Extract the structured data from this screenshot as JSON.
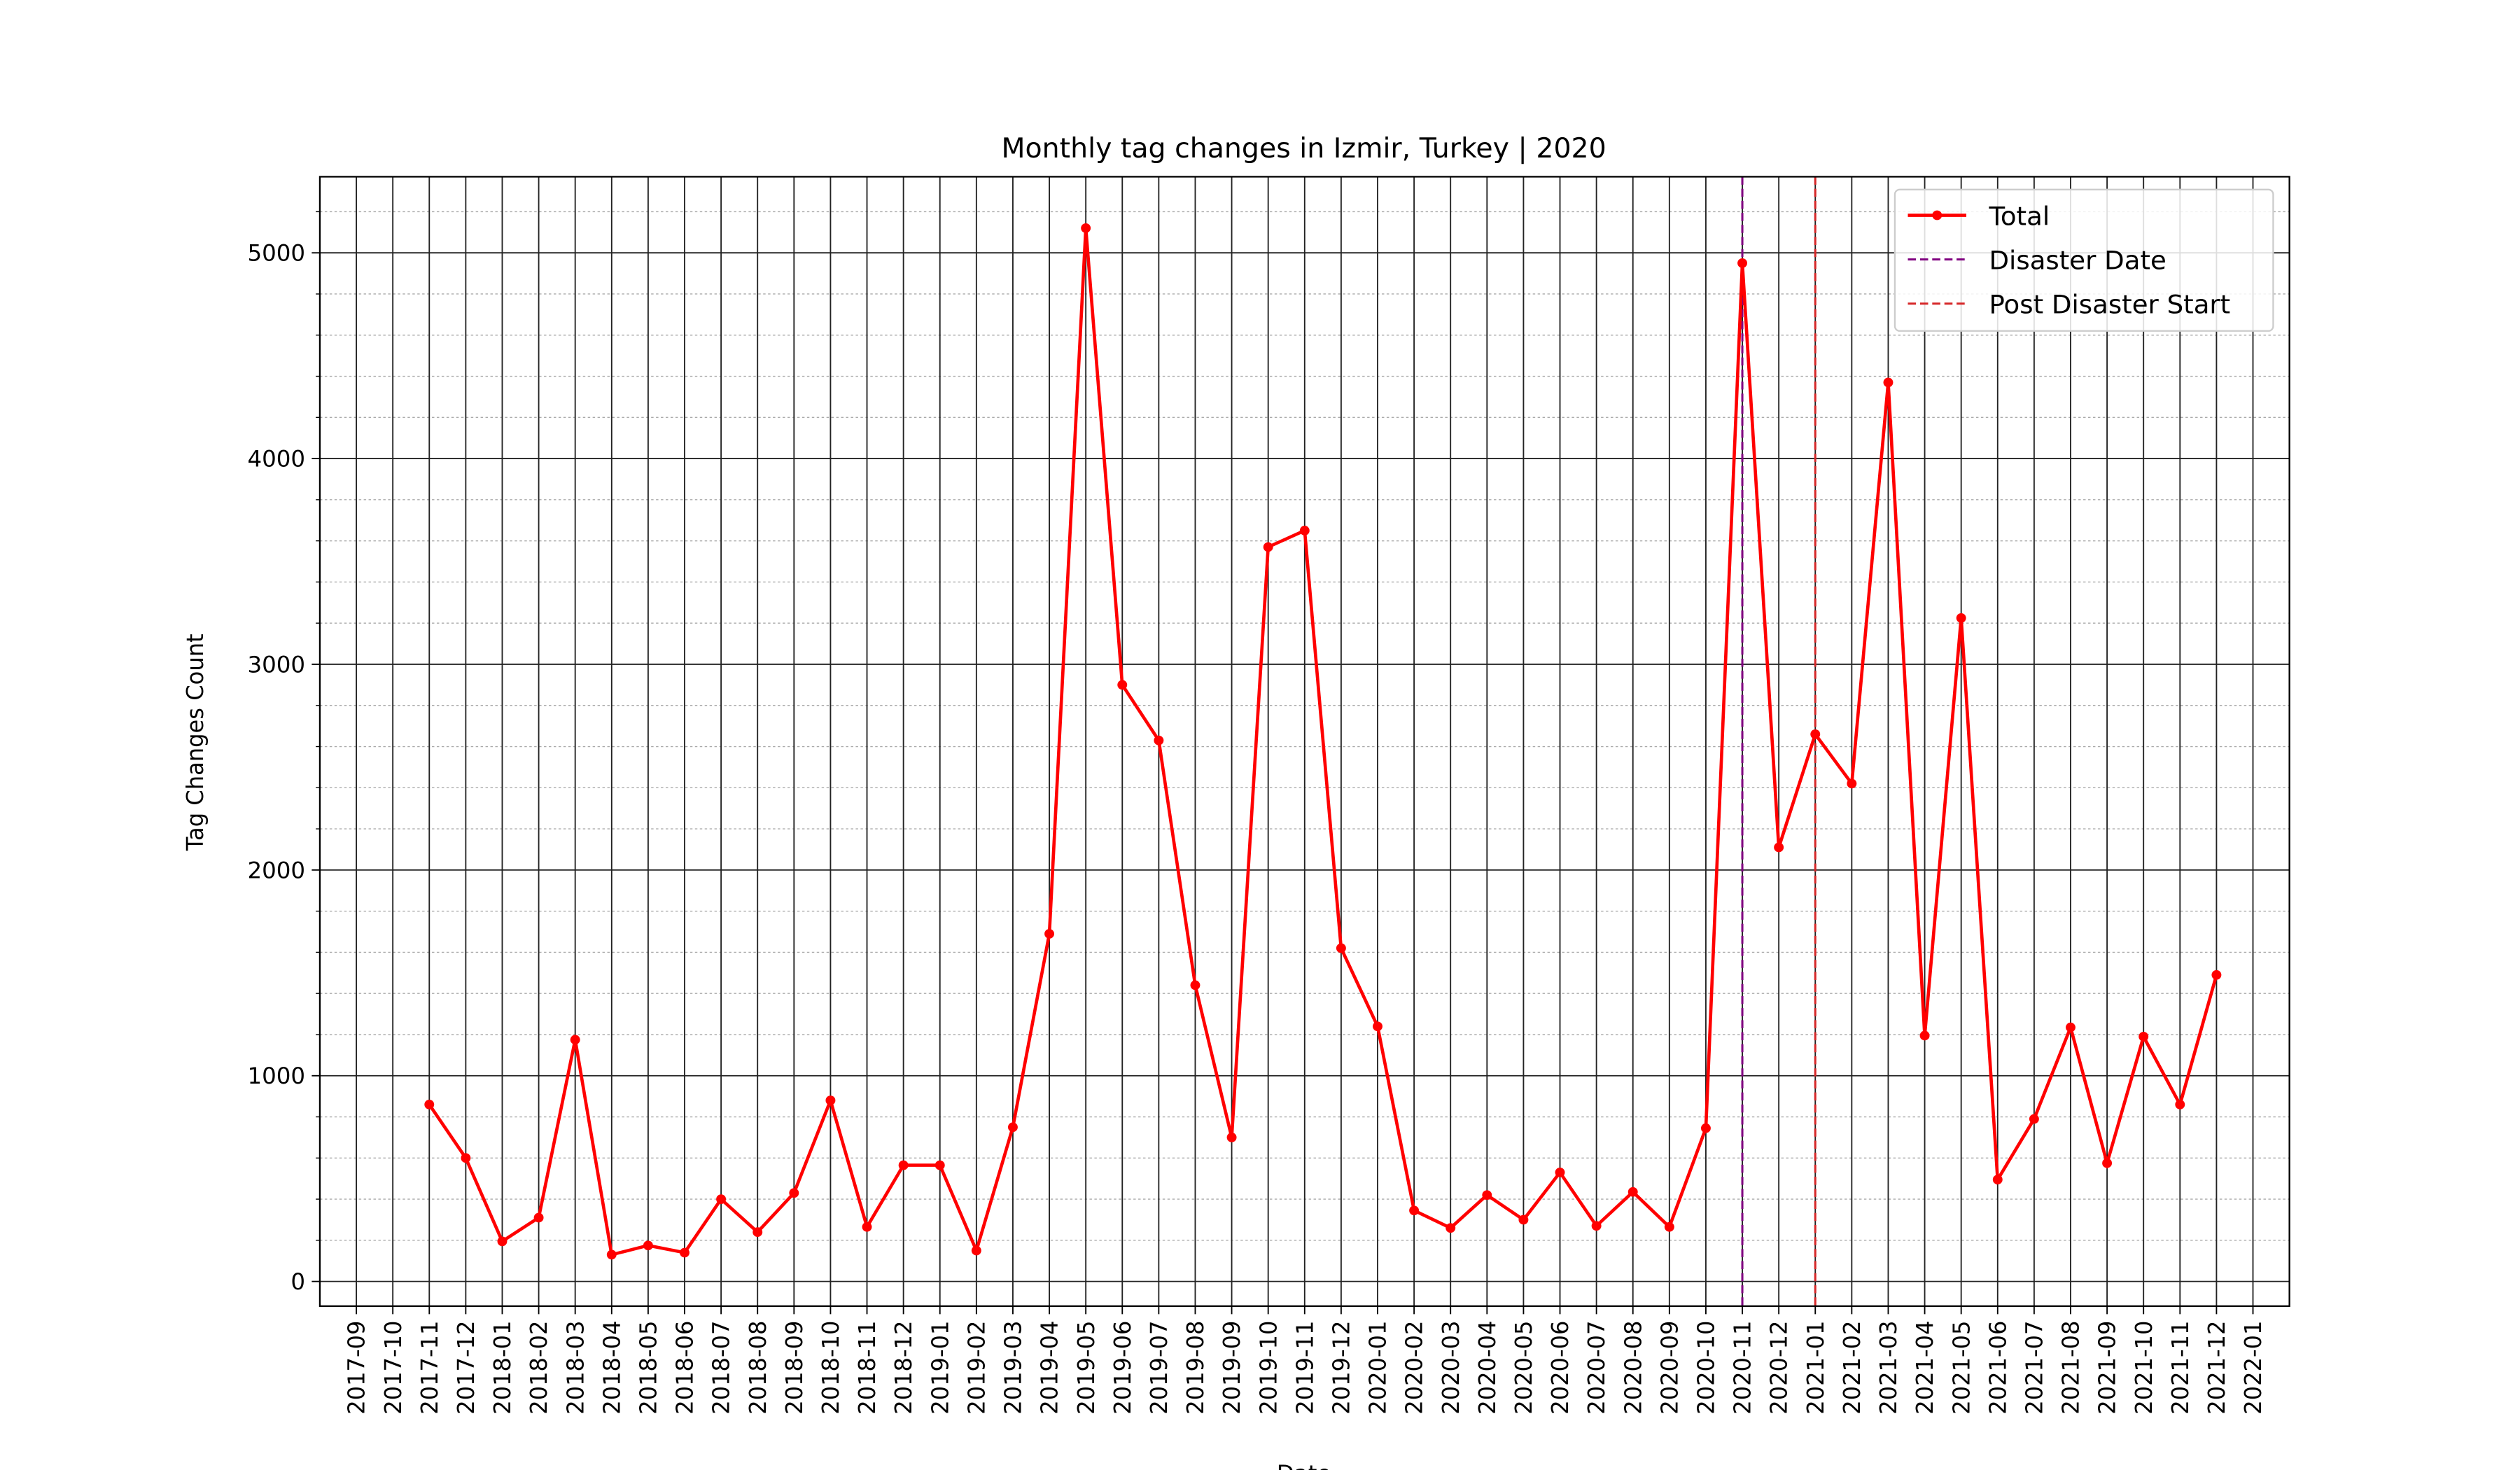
{
  "chart_data": {
    "type": "line",
    "title": "Monthly tag changes in Izmir, Turkey | 2020",
    "xlabel": "Date",
    "ylabel": "Tag Changes Count",
    "x": [
      "2017-10",
      "2017-11",
      "2017-12",
      "2018-01",
      "2018-02",
      "2018-03",
      "2018-04",
      "2018-05",
      "2018-06",
      "2018-07",
      "2018-08",
      "2018-09",
      "2018-10",
      "2018-11",
      "2018-12",
      "2019-01",
      "2019-02",
      "2019-03",
      "2019-04",
      "2019-05",
      "2019-06",
      "2019-07",
      "2019-08",
      "2019-09",
      "2019-10",
      "2019-11",
      "2019-12",
      "2020-01",
      "2020-02",
      "2020-03",
      "2020-04",
      "2020-05",
      "2020-06",
      "2020-07",
      "2020-08",
      "2020-09",
      "2020-10",
      "2020-11",
      "2020-12",
      "2021-01",
      "2021-02",
      "2021-03",
      "2021-04",
      "2021-05",
      "2021-06",
      "2021-07",
      "2021-08",
      "2021-09",
      "2021-10",
      "2021-11"
    ],
    "series": [
      {
        "name": "Total",
        "color": "#ff0000",
        "values": [
          860,
          600,
          195,
          310,
          1175,
          130,
          175,
          140,
          400,
          240,
          430,
          880,
          265,
          565,
          565,
          150,
          750,
          1690,
          5120,
          2900,
          2630,
          1440,
          700,
          3570,
          3650,
          1620,
          1240,
          345,
          260,
          420,
          300,
          530,
          270,
          435,
          265,
          745,
          4950,
          2110,
          2660,
          2420,
          4370,
          1195,
          3225,
          495,
          790,
          1235,
          575,
          1190,
          860,
          1490
        ]
      }
    ],
    "vlines": [
      {
        "name": "Disaster Date",
        "color": "#800080",
        "x": "2020-11"
      },
      {
        "name": "Post Disaster Start",
        "color": "#d62728",
        "x": "2021-01"
      }
    ],
    "xlim": [
      "2017-08",
      "2022-02"
    ],
    "xticks": [
      "2017-09",
      "2017-10",
      "2017-11",
      "2017-12",
      "2018-01",
      "2018-02",
      "2018-03",
      "2018-04",
      "2018-05",
      "2018-06",
      "2018-07",
      "2018-08",
      "2018-09",
      "2018-10",
      "2018-11",
      "2018-12",
      "2019-01",
      "2019-02",
      "2019-03",
      "2019-04",
      "2019-05",
      "2019-06",
      "2019-07",
      "2019-08",
      "2019-09",
      "2019-10",
      "2019-11",
      "2019-12",
      "2020-01",
      "2020-02",
      "2020-03",
      "2020-04",
      "2020-05",
      "2020-06",
      "2020-07",
      "2020-08",
      "2020-09",
      "2020-10",
      "2020-11",
      "2020-12",
      "2021-01",
      "2021-02",
      "2021-03",
      "2021-04",
      "2021-05",
      "2021-06",
      "2021-07",
      "2021-08",
      "2021-09",
      "2021-10",
      "2021-11",
      "2021-12",
      "2022-01"
    ],
    "ylim": [
      -120,
      5370
    ],
    "yticks": [
      0,
      1000,
      2000,
      3000,
      4000,
      5000
    ],
    "yminorticks": [
      200,
      400,
      600,
      800,
      1200,
      1400,
      1600,
      1800,
      2200,
      2400,
      2600,
      2800,
      3200,
      3400,
      3600,
      3800,
      4200,
      4400,
      4600,
      4800,
      5200
    ],
    "grid": true,
    "legend": "upper right"
  }
}
